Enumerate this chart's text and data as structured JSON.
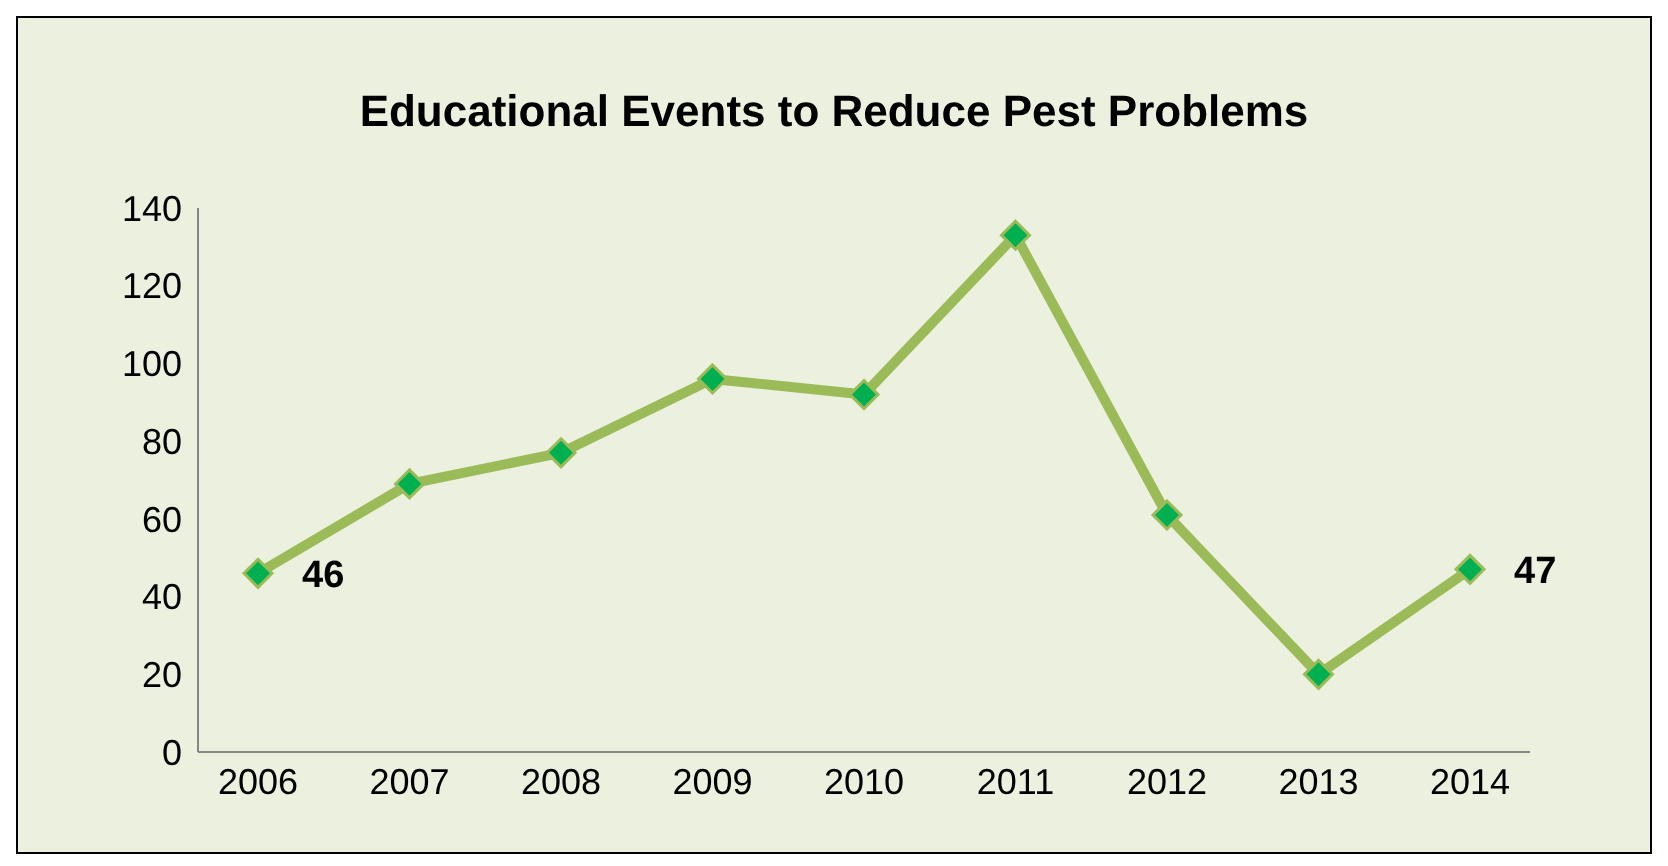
{
  "chart_data": {
    "type": "line",
    "title": "Educational Events to Reduce Pest Problems",
    "categories": [
      "2006",
      "2007",
      "2008",
      "2009",
      "2010",
      "2011",
      "2012",
      "2013",
      "2014"
    ],
    "series": [
      {
        "color": "#9bbb59",
        "values": [
          46,
          69,
          77,
          96,
          92,
          133,
          61,
          20,
          47
        ],
        "value_labels": [
          "46",
          null,
          null,
          null,
          null,
          null,
          null,
          null,
          "47"
        ]
      }
    ],
    "ylim": [
      0,
      140
    ],
    "yticks": [
      0,
      20,
      40,
      60,
      80,
      100,
      120,
      140
    ],
    "grid": false,
    "legend": false,
    "marker": "diamond",
    "line_style": "solid"
  }
}
